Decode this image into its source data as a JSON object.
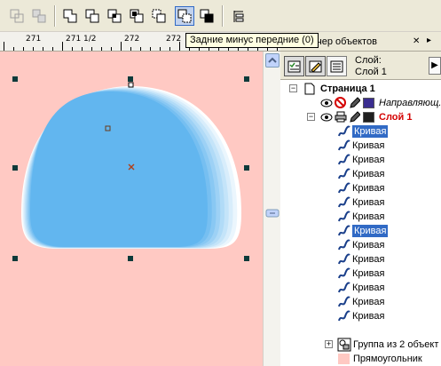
{
  "toolbar": {
    "buttons": [
      {
        "name": "combine",
        "enabled": false
      },
      {
        "name": "break-apart",
        "enabled": false
      },
      {
        "name": "weld",
        "enabled": true
      },
      {
        "name": "trim",
        "enabled": true
      },
      {
        "name": "intersect",
        "enabled": true
      },
      {
        "name": "simplify",
        "enabled": true
      },
      {
        "name": "front-minus-back",
        "enabled": true
      },
      {
        "name": "back-minus-front",
        "enabled": true,
        "pressed": true
      },
      {
        "name": "create-boundary",
        "enabled": true
      },
      {
        "name": "align-distribute",
        "enabled": true
      }
    ]
  },
  "ruler": {
    "labels": [
      "271",
      "271 1/2",
      "272",
      "272"
    ]
  },
  "tooltip": {
    "text": "Задние минус передние (0)"
  },
  "docker": {
    "title": "тчер объектов",
    "close_glyph": "✕",
    "pin_glyph": "▸",
    "layer_label": "Слой:",
    "layer_value": "Слой 1",
    "arrow_glyph": "▶"
  },
  "tree": {
    "page": {
      "label": "Страница 1",
      "expander": "−"
    },
    "guides": {
      "label": "Направляющ...",
      "color": "#3a2d8f"
    },
    "layer": {
      "label": "Слой 1",
      "expander": "−",
      "color": "#1f1f1f"
    },
    "curves": [
      {
        "label": "Кривая",
        "selected": true
      },
      {
        "label": "Кривая",
        "selected": false
      },
      {
        "label": "Кривая",
        "selected": false
      },
      {
        "label": "Кривая",
        "selected": false
      },
      {
        "label": "Кривая",
        "selected": false
      },
      {
        "label": "Кривая",
        "selected": false
      },
      {
        "label": "Кривая",
        "selected": false
      },
      {
        "label": "Кривая",
        "selected": true
      },
      {
        "label": "Кривая",
        "selected": false
      },
      {
        "label": "Кривая",
        "selected": false
      },
      {
        "label": "Кривая",
        "selected": false
      },
      {
        "label": "Кривая",
        "selected": false
      },
      {
        "label": "Кривая",
        "selected": false
      },
      {
        "label": "Кривая",
        "selected": false
      }
    ],
    "group": {
      "label": "Группа из 2 объект",
      "expander": "+"
    },
    "rect": {
      "label": "Прямоугольник",
      "color": "#ffc9c3"
    }
  },
  "colors": {
    "canvas": "#ffc9c3",
    "selection": "#316ac5",
    "shape_core": "#62b6ef",
    "shape_edge": "#ffffff"
  }
}
